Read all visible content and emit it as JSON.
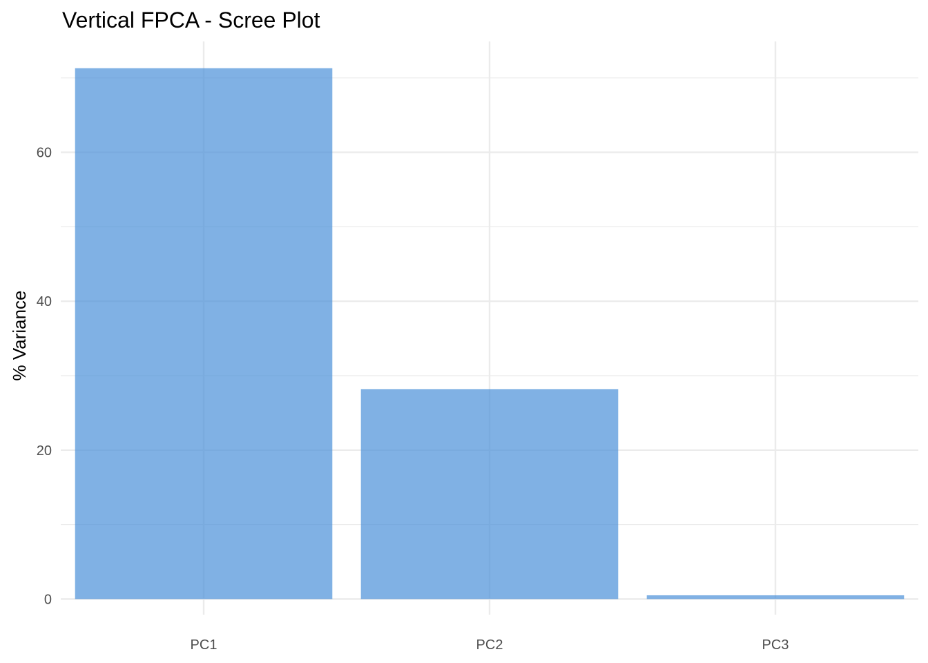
{
  "chart_data": {
    "type": "bar",
    "title": "Vertical FPCA - Scree Plot",
    "xlabel": "",
    "ylabel": "% Variance",
    "categories": [
      "PC1",
      "PC2",
      "PC3"
    ],
    "values": [
      71.3,
      28.2,
      0.5
    ],
    "ylim": [
      -2.1,
      74.9
    ],
    "yticks": [
      0,
      20,
      40,
      60
    ],
    "grid": true,
    "legend": "none",
    "colors": {
      "bar": "#4A90D9",
      "grid": "#EBEBEB",
      "tick_text": "#4D4D4D"
    }
  }
}
